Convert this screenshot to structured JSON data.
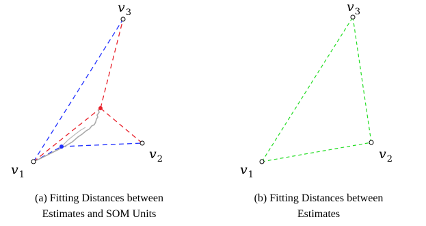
{
  "panel_a": {
    "vertices": [
      {
        "name": "v",
        "sub": "1"
      },
      {
        "name": "v",
        "sub": "2"
      },
      {
        "name": "v",
        "sub": "3"
      }
    ],
    "caption_line1": "(a) Fitting Distances between",
    "caption_line2": "Estimates and SOM Units",
    "colors": {
      "blue_dash": "#1f2fff",
      "red_dash": "#e8202a",
      "gray_path": "#aaaaaa",
      "vertex": "#000000"
    }
  },
  "panel_b": {
    "vertices": [
      {
        "name": "v",
        "sub": "1"
      },
      {
        "name": "v",
        "sub": "2"
      },
      {
        "name": "v",
        "sub": "3"
      }
    ],
    "caption_line1": "(b) Fitting Distances between",
    "caption_line2": "Estimates",
    "colors": {
      "green_dash": "#22dd22",
      "vertex": "#000000"
    }
  }
}
